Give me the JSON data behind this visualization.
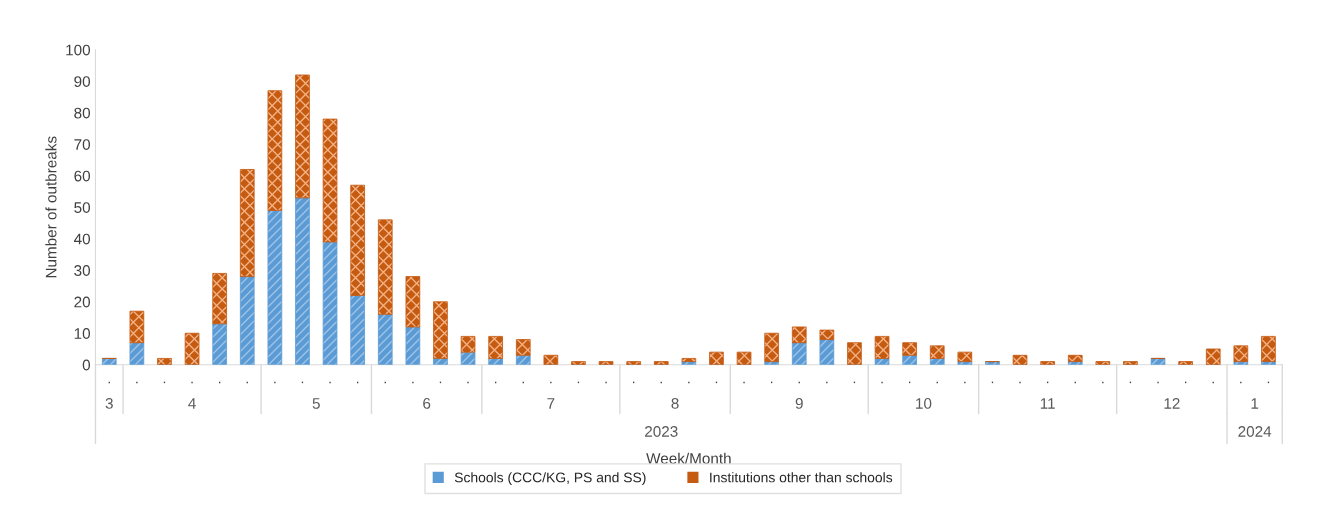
{
  "chart_data": {
    "type": "bar",
    "stacked": true,
    "xlabel": "Week/Month",
    "ylabel": "Number of outbreaks",
    "categories": [
      ".",
      ".",
      ".",
      ".",
      ".",
      ".",
      ".",
      ".",
      ".",
      ".",
      ".",
      ".",
      ".",
      ".",
      ".",
      ".",
      ".",
      ".",
      ".",
      ".",
      ".",
      ".",
      ".",
      ".",
      ".",
      ".",
      ".",
      ".",
      ".",
      ".",
      ".",
      ".",
      ".",
      ".",
      ".",
      ".",
      ".",
      ".",
      ".",
      ".",
      ".",
      ".",
      "."
    ],
    "series": [
      {
        "name": "Schools (CCC/KG, PS and SS)",
        "color": "#5b9bd5",
        "values": [
          2,
          7,
          0,
          0,
          13,
          28,
          49,
          53,
          39,
          22,
          16,
          12,
          2,
          4,
          2,
          3,
          0,
          0,
          0,
          0,
          0,
          1,
          0,
          0,
          1,
          7,
          8,
          0,
          2,
          3,
          2,
          1,
          1,
          0,
          0,
          1,
          0,
          0,
          2,
          0,
          0,
          1,
          1
        ]
      },
      {
        "name": "Institutions other than schools",
        "color": "#c55a11",
        "values": [
          0,
          10,
          2,
          10,
          16,
          34,
          38,
          39,
          39,
          35,
          30,
          16,
          18,
          5,
          7,
          5,
          3,
          1,
          1,
          1,
          1,
          1,
          4,
          4,
          9,
          5,
          3,
          7,
          7,
          4,
          4,
          3,
          0,
          3,
          1,
          2,
          1,
          1,
          0,
          1,
          5,
          5,
          8
        ]
      }
    ],
    "annotations": [
      "3",
      "4",
      "5",
      "6",
      "7",
      "8",
      "9",
      "10",
      "11",
      "12",
      "1",
      "2023",
      "2024"
    ],
    "ylim": [
      0,
      100
    ],
    "yticks": [
      0,
      10,
      20,
      30,
      40,
      50,
      60,
      70,
      80,
      90,
      100
    ],
    "grid": false,
    "legend": "bottom"
  }
}
